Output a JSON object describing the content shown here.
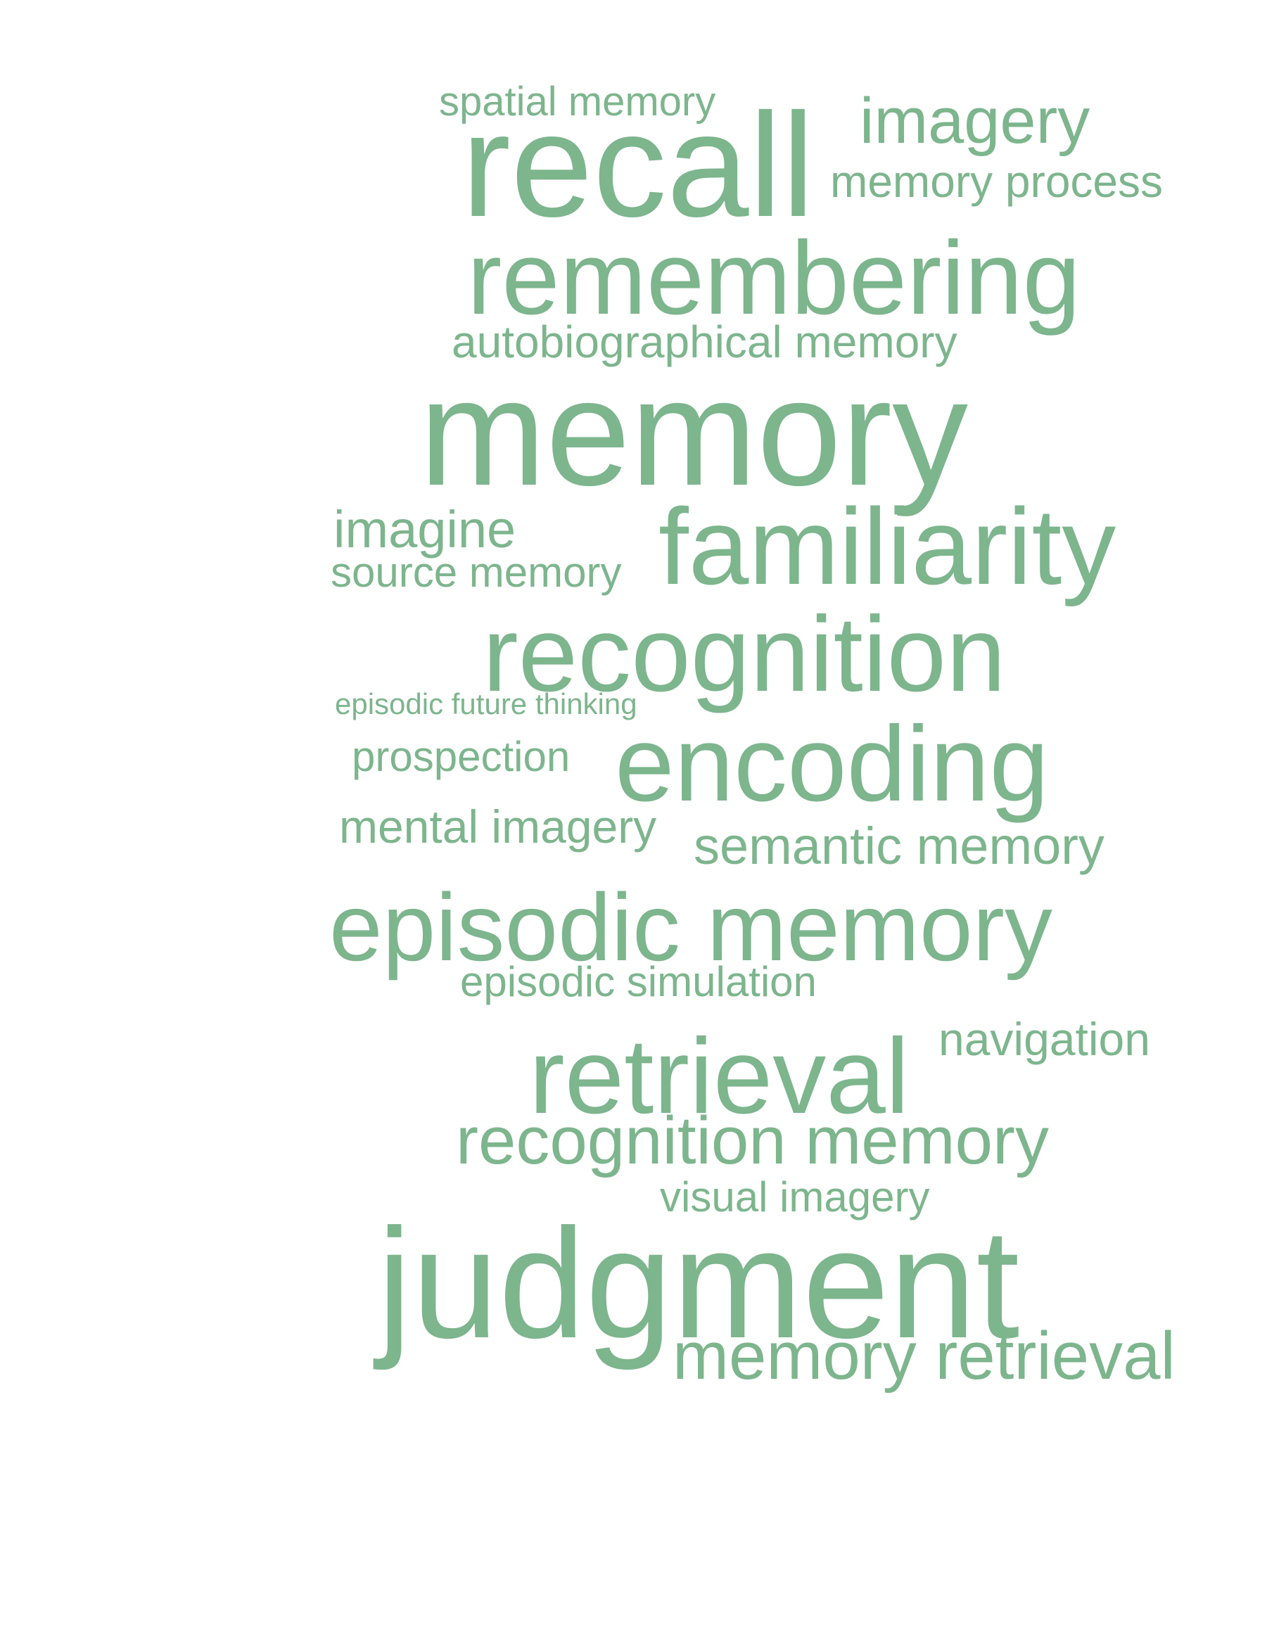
{
  "word_cloud": {
    "color": "#7db58d",
    "words": [
      {
        "id": "spatial-memory",
        "text": "spatial memory"
      },
      {
        "id": "imagery",
        "text": "imagery"
      },
      {
        "id": "recall",
        "text": "recall"
      },
      {
        "id": "memory-process",
        "text": "memory process"
      },
      {
        "id": "remembering",
        "text": "remembering"
      },
      {
        "id": "autobiographical-memory",
        "text": "autobiographical memory"
      },
      {
        "id": "memory",
        "text": "memory"
      },
      {
        "id": "imagine",
        "text": "imagine"
      },
      {
        "id": "source-memory",
        "text": "source memory"
      },
      {
        "id": "familiarity",
        "text": "familiarity"
      },
      {
        "id": "recognition",
        "text": "recognition"
      },
      {
        "id": "episodic-future-thinking",
        "text": "episodic future thinking"
      },
      {
        "id": "prospection",
        "text": "prospection"
      },
      {
        "id": "encoding",
        "text": "encoding"
      },
      {
        "id": "mental-imagery",
        "text": "mental imagery"
      },
      {
        "id": "semantic-memory",
        "text": "semantic memory"
      },
      {
        "id": "episodic-memory",
        "text": "episodic memory"
      },
      {
        "id": "episodic-simulation",
        "text": "episodic simulation"
      },
      {
        "id": "navigation",
        "text": "navigation"
      },
      {
        "id": "retrieval",
        "text": "retrieval"
      },
      {
        "id": "recognition-memory",
        "text": "recognition memory"
      },
      {
        "id": "visual-imagery",
        "text": "visual imagery"
      },
      {
        "id": "judgment",
        "text": "judgment"
      },
      {
        "id": "memory-retrieval",
        "text": "memory retrieval"
      }
    ]
  }
}
